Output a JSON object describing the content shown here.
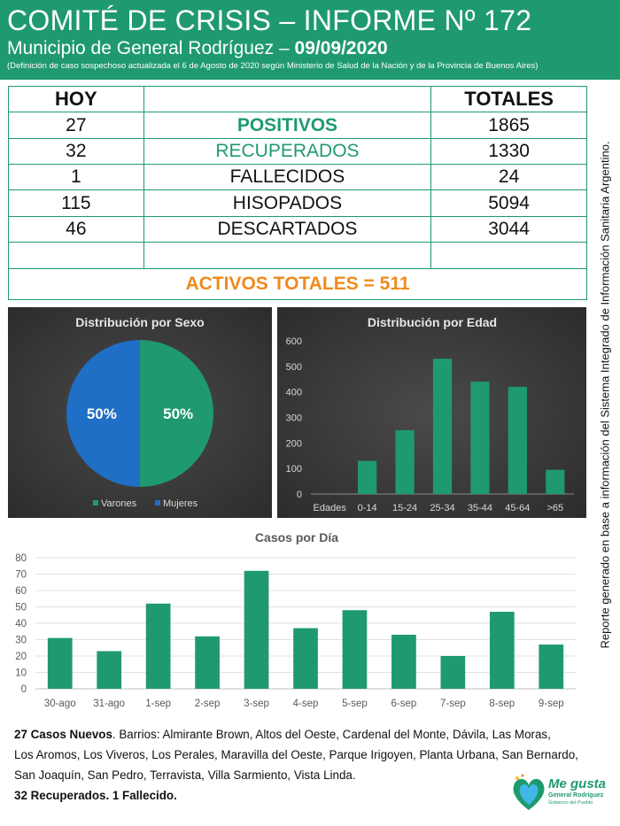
{
  "header": {
    "title": "COMITÉ DE CRISIS – INFORME Nº 172",
    "subtitle_prefix": "Municipio de General Rodríguez –",
    "date": "09/09/2020",
    "note": "(Definición de caso sospechoso actualizada el 6 de Agosto de 2020 según Ministerio de Salud de la Nación y de la Provincia de Buenos Aires)"
  },
  "stats": {
    "col_today": "HOY",
    "col_total": "TOTALES",
    "rows": [
      {
        "today": "27",
        "label": "POSITIVOS",
        "total": "1865"
      },
      {
        "today": "32",
        "label": "RECUPERADOS",
        "total": "1330"
      },
      {
        "today": "1",
        "label": "FALLECIDOS",
        "total": "24"
      },
      {
        "today": "115",
        "label": "HISOPADOS",
        "total": "5094"
      },
      {
        "today": "46",
        "label": "DESCARTADOS",
        "total": "3044"
      }
    ],
    "active": "ACTIVOS TOTALES = 511"
  },
  "side_note": "Reporte generado en base a información del Sistema Integrado de Información Sanitaria Argentino.",
  "colors": {
    "green": "#1f9a6e",
    "blue": "#1f6fc6",
    "orange": "#f08a1c"
  },
  "chart_data": [
    {
      "type": "pie",
      "title": "Distribución por Sexo",
      "labels": [
        "Varones",
        "Mujeres"
      ],
      "values": [
        50,
        50
      ],
      "data_labels": [
        "50%",
        "50%"
      ],
      "colors": [
        "#1f9a6e",
        "#1f6fc6"
      ],
      "legend": "bottom"
    },
    {
      "type": "bar",
      "title": "Distribución por Edad",
      "categories": [
        "Edades",
        "0-14",
        "15-24",
        "25-34",
        "35-44",
        "45-64",
        ">65"
      ],
      "values": [
        0,
        130,
        250,
        530,
        440,
        420,
        95
      ],
      "ylim": [
        0,
        600
      ],
      "yticks": [
        0,
        100,
        200,
        300,
        400,
        500,
        600
      ],
      "color": "#1f9a6e",
      "grid": false
    },
    {
      "type": "bar",
      "title": "Casos por Día",
      "categories": [
        "30-ago",
        "31-ago",
        "1-sep",
        "2-sep",
        "3-sep",
        "4-sep",
        "5-sep",
        "6-sep",
        "7-sep",
        "8-sep",
        "9-sep"
      ],
      "values": [
        31,
        23,
        52,
        32,
        72,
        37,
        48,
        33,
        20,
        47,
        27
      ],
      "ylim": [
        0,
        80
      ],
      "yticks": [
        0,
        10,
        20,
        30,
        40,
        50,
        60,
        70,
        80
      ],
      "color": "#1f9a6e",
      "grid": true
    }
  ],
  "footer": {
    "new_cases_bold": "27 Casos Nuevos",
    "line1": ". Barrios: Almirante Brown, Altos del Oeste, Cardenal del Monte, Dávila, Las Moras,",
    "line2": "Los Aromos, Los Viveros, Los Perales, Maravilla del Oeste, Parque Irigoyen, Planta Urbana, San Bernardo,",
    "line3": " San Joaquín, San Pedro, Terravista, Villa Sarmiento, Vista Linda.",
    "line4": "32 Recuperados. 1 Fallecido."
  },
  "logo": {
    "title": "Me gusta",
    "subtitle": "General Rodríguez",
    "tagline": "Gobierno del Pueblo"
  }
}
